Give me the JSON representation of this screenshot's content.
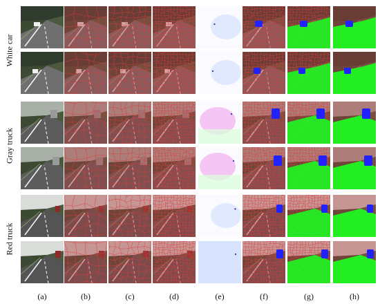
{
  "figure": {
    "rows": [
      {
        "label": "White car",
        "frames": 2,
        "sky": "#2f3b2c",
        "road": "#6f6f6f"
      },
      {
        "label": "Gray truck",
        "frames": 2,
        "sky": "#a9b0a8",
        "road": "#5c5c5c"
      },
      {
        "label": "Red truck",
        "frames": 2,
        "sky": "#d9dcd9",
        "road": "#545454"
      }
    ],
    "columns": [
      {
        "label": "(a)",
        "kind": "original"
      },
      {
        "label": "(b)",
        "kind": "superpixel-coarse"
      },
      {
        "label": "(c)",
        "kind": "superpixel-medium"
      },
      {
        "label": "(d)",
        "kind": "superpixel-fine"
      },
      {
        "label": "(e)",
        "kind": "optical-flow"
      },
      {
        "label": "(f)",
        "kind": "detection-blue"
      },
      {
        "label": "(g)",
        "kind": "segmentation-green"
      },
      {
        "label": "(h)",
        "kind": "final-result"
      }
    ],
    "colors": {
      "superpixel_edge": "#e23a3a",
      "object_blue": "#2222ff",
      "ground_green": "#22ee22",
      "tint_red": "#b04040",
      "flow_pink": "#f4b8f0",
      "flow_blue": "#c8d8ff",
      "flow_green": "#d8ffd8"
    }
  }
}
